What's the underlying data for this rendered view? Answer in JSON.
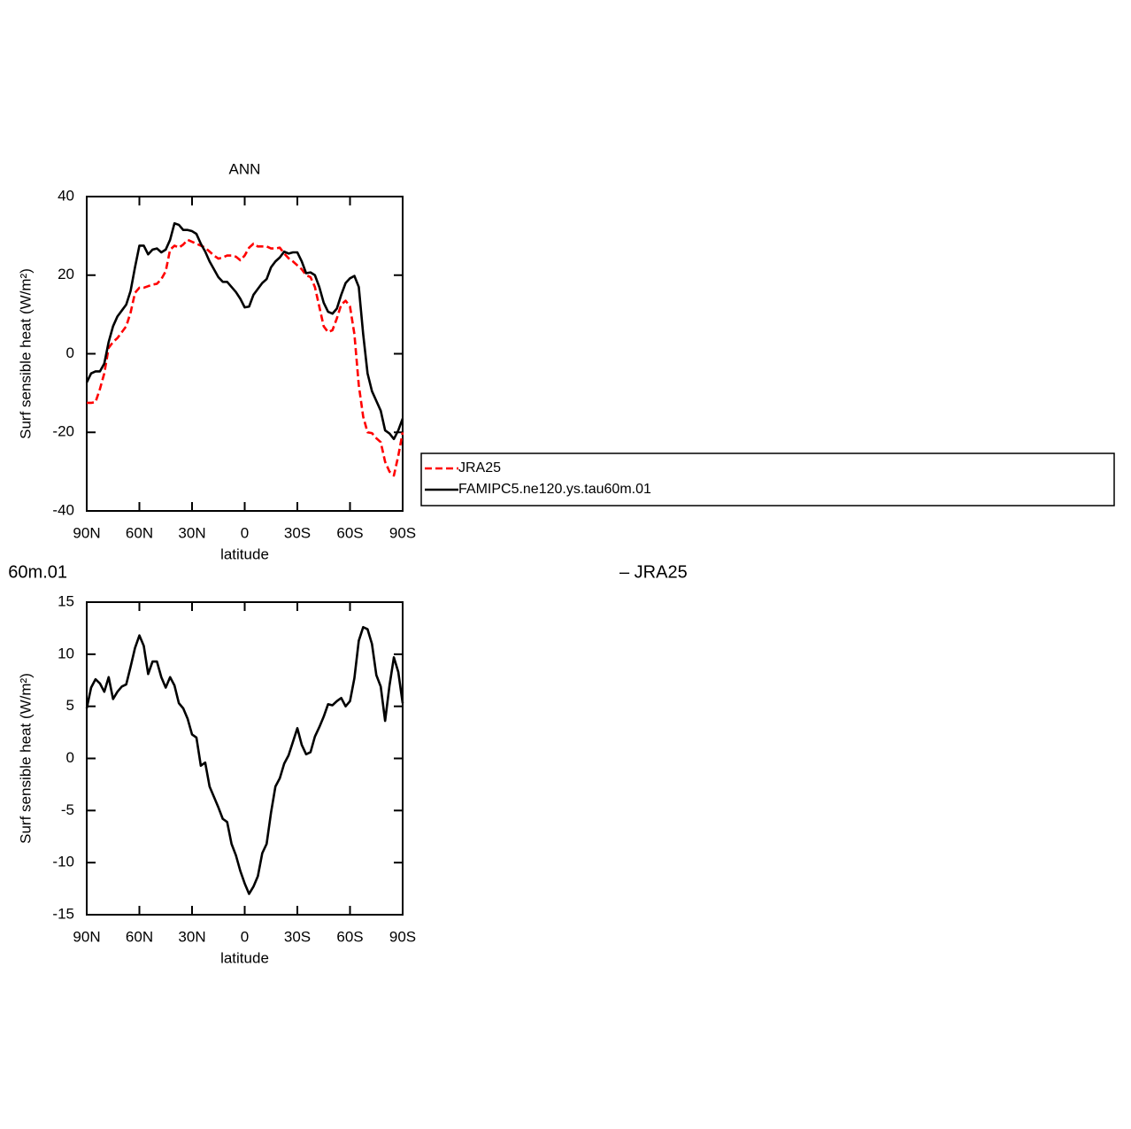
{
  "chart_data": [
    {
      "type": "line",
      "title": "ANN",
      "y_label": "Surf sensible heat (W/m²)",
      "x_label": "latitude",
      "xlim": [
        90,
        -90
      ],
      "ylim": [
        -40,
        40
      ],
      "xticks": [
        {
          "value": 90,
          "label": "90N"
        },
        {
          "value": 60,
          "label": "60N"
        },
        {
          "value": 30,
          "label": "30N"
        },
        0,
        {
          "value": -30,
          "label": "30S"
        },
        {
          "value": -60,
          "label": "60S"
        },
        {
          "value": -90,
          "label": "90S"
        }
      ],
      "yticks": [
        -40,
        -20,
        0,
        20,
        40
      ],
      "legend": "right",
      "x": [
        90,
        87.5,
        85,
        82.5,
        80,
        77.5,
        75,
        72.5,
        70,
        67.5,
        65,
        62.5,
        60,
        57.5,
        55,
        52.5,
        50,
        47.5,
        45,
        42.5,
        40,
        37.5,
        35,
        32.5,
        30,
        27.5,
        25,
        22.5,
        20,
        17.5,
        15,
        12.5,
        10,
        7.5,
        5,
        2.5,
        0,
        -2.5,
        -5,
        -7.5,
        -10,
        -12.5,
        -15,
        -17.5,
        -20,
        -22.5,
        -25,
        -27.5,
        -30,
        -32.5,
        -35,
        -37.5,
        -40,
        -42.5,
        -45,
        -47.5,
        -50,
        -52.5,
        -55,
        -57.5,
        -60,
        -62.5,
        -65,
        -67.5,
        -70,
        -72.5,
        -75,
        -77.5,
        -80,
        -82.5,
        -85,
        -87.5,
        -90
      ],
      "series": [
        {
          "name": "JRA25",
          "color": "#ff0000",
          "dashed": true,
          "values": [
            -12.5,
            -12.5,
            -12.3,
            -9,
            -5,
            1.5,
            3,
            4,
            5.5,
            7,
            10.5,
            15.5,
            16.8,
            16.8,
            17.2,
            17.6,
            17.8,
            19,
            21,
            26.5,
            27.5,
            27,
            27.8,
            29,
            28.5,
            28,
            27.5,
            27,
            26,
            25,
            24.2,
            24.5,
            25,
            25,
            24.7,
            23.8,
            25,
            27,
            28,
            27.3,
            27.3,
            27.3,
            26.8,
            26.8,
            27,
            25.5,
            24.3,
            23.5,
            22.5,
            21.5,
            20,
            19.5,
            17,
            12,
            7,
            5.5,
            6,
            9,
            12.5,
            13.5,
            12,
            5,
            -8,
            -16,
            -20,
            -20.2,
            -21.5,
            -22.5,
            -27.5,
            -30,
            -31,
            -26,
            -20
          ]
        },
        {
          "name": "FAMIPC5.ne120.ys.tau60m.01",
          "color": "#000000",
          "dashed": false,
          "values": [
            -7.3,
            -5,
            -4.5,
            -4.5,
            -2.5,
            3,
            7,
            9.5,
            11,
            12.5,
            16,
            22,
            27.5,
            27.5,
            25.3,
            26.5,
            26.8,
            25.8,
            26.5,
            29,
            33.2,
            32.8,
            31.5,
            31.5,
            31.2,
            30.5,
            28,
            26,
            23.5,
            21.5,
            19.5,
            18.3,
            18.3,
            17,
            15.7,
            14,
            11.8,
            12,
            15,
            16.5,
            18,
            19,
            22,
            23.5,
            24.5,
            26,
            25.5,
            25.8,
            25.8,
            23.5,
            20.5,
            20.7,
            20,
            17,
            13,
            10.7,
            10.2,
            11.5,
            15,
            18,
            19.2,
            19.8,
            17,
            5,
            -5,
            -9.5,
            -12,
            -14.5,
            -19.5,
            -20.3,
            -21.7,
            -19.5,
            -16.5
          ]
        }
      ]
    },
    {
      "type": "line",
      "title_parts": [
        "60m.01",
        "– JRA25"
      ],
      "y_label": "Surf sensible heat (W/m²)",
      "x_label": "latitude",
      "xlim": [
        90,
        -90
      ],
      "ylim": [
        -15,
        15
      ],
      "xticks": [
        {
          "value": 90,
          "label": "90N"
        },
        {
          "value": 60,
          "label": "60N"
        },
        {
          "value": 30,
          "label": "30N"
        },
        0,
        {
          "value": -30,
          "label": "30S"
        },
        {
          "value": -60,
          "label": "60S"
        },
        {
          "value": -90,
          "label": "90S"
        }
      ],
      "yticks": [
        -15,
        -10,
        -5,
        0,
        5,
        10,
        15
      ],
      "x": [
        90,
        87.5,
        85,
        82.5,
        80,
        77.5,
        75,
        72.5,
        70,
        67.5,
        65,
        62.5,
        60,
        57.5,
        55,
        52.5,
        50,
        47.5,
        45,
        42.5,
        40,
        37.5,
        35,
        32.5,
        30,
        27.5,
        25,
        22.5,
        20,
        17.5,
        15,
        12.5,
        10,
        7.5,
        5,
        2.5,
        0,
        -2.5,
        -5,
        -7.5,
        -10,
        -12.5,
        -15,
        -17.5,
        -20,
        -22.5,
        -25,
        -27.5,
        -30,
        -32.5,
        -35,
        -37.5,
        -40,
        -42.5,
        -45,
        -47.5,
        -50,
        -52.5,
        -55,
        -57.5,
        -60,
        -62.5,
        -65,
        -67.5,
        -70,
        -72.5,
        -75,
        -77.5,
        -80,
        -82.5,
        -85,
        -87.5,
        -90
      ],
      "series": [
        {
          "color": "#000000",
          "dashed": false,
          "values": [
            4.8,
            6.8,
            7.6,
            7.2,
            6.4,
            7.8,
            5.7,
            6.4,
            6.9,
            7.1,
            8.8,
            10.6,
            11.8,
            10.8,
            8.1,
            9.3,
            9.3,
            7.8,
            6.8,
            7.8,
            7,
            5.3,
            4.8,
            3.8,
            2.3,
            2,
            -0.7,
            -0.4,
            -2.7,
            -3.7,
            -4.7,
            -5.8,
            -6.1,
            -8.2,
            -9.3,
            -10.8,
            -12,
            -13,
            -12.3,
            -11.3,
            -9.1,
            -8.2,
            -5.2,
            -2.7,
            -1.9,
            -0.5,
            0.3,
            1.6,
            2.9,
            1.3,
            0.4,
            0.6,
            2.1,
            3,
            4,
            5.2,
            5.1,
            5.5,
            5.8,
            5,
            5.5,
            7.7,
            11.3,
            12.6,
            12.4,
            11,
            8,
            6.9,
            3.6,
            7,
            9.7,
            8.3,
            5.3
          ]
        }
      ]
    }
  ]
}
